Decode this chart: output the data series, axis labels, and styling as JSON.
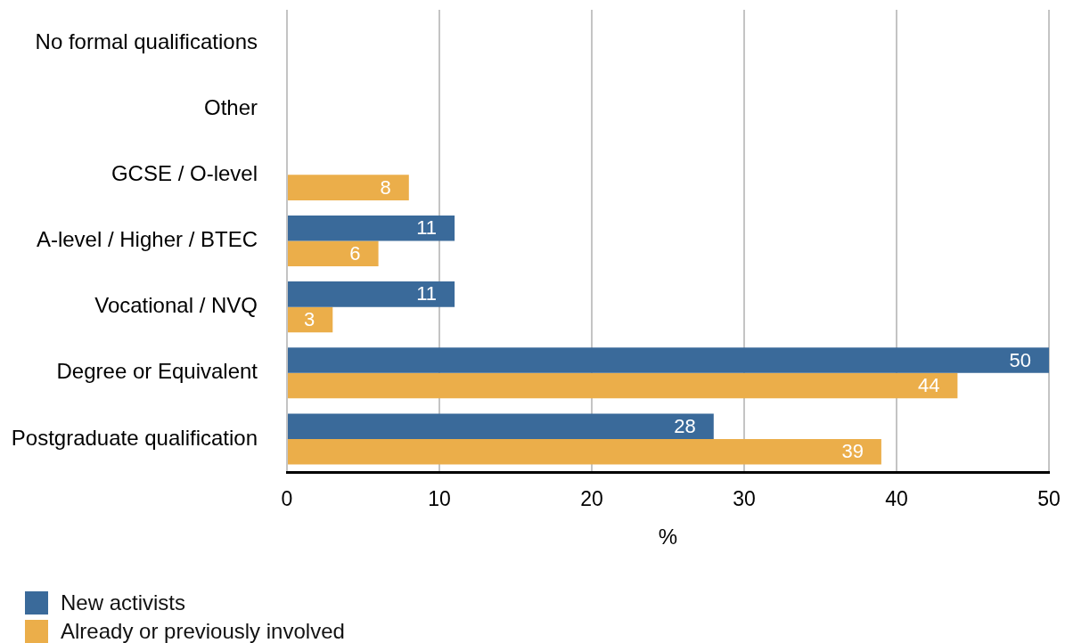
{
  "chart_data": {
    "type": "bar",
    "orientation": "horizontal",
    "categories": [
      "No formal qualifications",
      "Other",
      "GCSE / O-level",
      "A-level / Higher / BTEC",
      "Vocational / NVQ",
      "Degree or Equivalent",
      "Postgraduate qualification"
    ],
    "series": [
      {
        "name": "New activists",
        "color": "#3a6a9a",
        "values": [
          null,
          null,
          null,
          11,
          11,
          50,
          28
        ]
      },
      {
        "name": "Already or previously involved",
        "color": "#ebae4a",
        "values": [
          null,
          null,
          8,
          6,
          3,
          44,
          39
        ]
      }
    ],
    "xlabel": "%",
    "xlim": [
      0,
      50
    ],
    "xticks": [
      0,
      10,
      20,
      30,
      40,
      50
    ],
    "grid": "x",
    "legend": "bottom left",
    "data_labels": true
  }
}
